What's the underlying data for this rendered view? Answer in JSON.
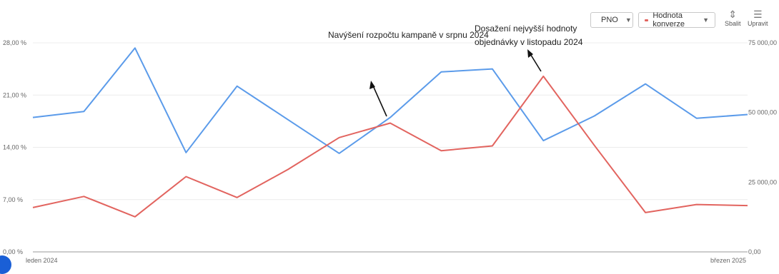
{
  "legend": {
    "pno_label": "PNO",
    "conv_label": "Hodnota konverze",
    "pno_color": "#5b9bea",
    "conv_color": "#e2645f"
  },
  "toolbar": {
    "collapse_label": "Sbalit",
    "edit_label": "Upravit"
  },
  "annotations": {
    "budget": "Navýšení rozpočtu kampaně v srpnu 2024",
    "peak_line1": "Dosažení nejvyšší hodnoty",
    "peak_line2": "objednávky v listopadu 2024"
  },
  "chart_data": {
    "type": "line",
    "title": "",
    "x_labels": {
      "start": "leden 2024",
      "end": "březen 2025"
    },
    "left_axis": {
      "ticks": [
        "0,00 %",
        "7,00 %",
        "14,00 %",
        "21,00 %",
        "28,00 %"
      ],
      "values": [
        0,
        7,
        14,
        21,
        28
      ],
      "ylim": [
        0,
        28
      ]
    },
    "right_axis": {
      "ticks": [
        "0,00",
        "25 000,00",
        "50 000,00",
        "75 000,00"
      ],
      "values": [
        0,
        25000,
        50000,
        75000
      ],
      "ylim": [
        0,
        75000
      ]
    },
    "grid": true,
    "legend_position": "top-right",
    "series": [
      {
        "name": "PNO",
        "axis": "left",
        "color": "#5b9bea",
        "values": [
          18.0,
          18.8,
          27.3,
          13.3,
          22.2,
          17.7,
          13.2,
          18.0,
          24.1,
          24.5,
          14.9,
          18.2,
          22.5,
          17.9,
          18.4
        ]
      },
      {
        "name": "Hodnota konverze",
        "axis": "right",
        "color": "#e2645f",
        "values": [
          15900,
          19900,
          12600,
          27000,
          19500,
          29600,
          41000,
          46200,
          36300,
          38000,
          63000,
          38200,
          14100,
          17000,
          16600
        ]
      }
    ]
  }
}
